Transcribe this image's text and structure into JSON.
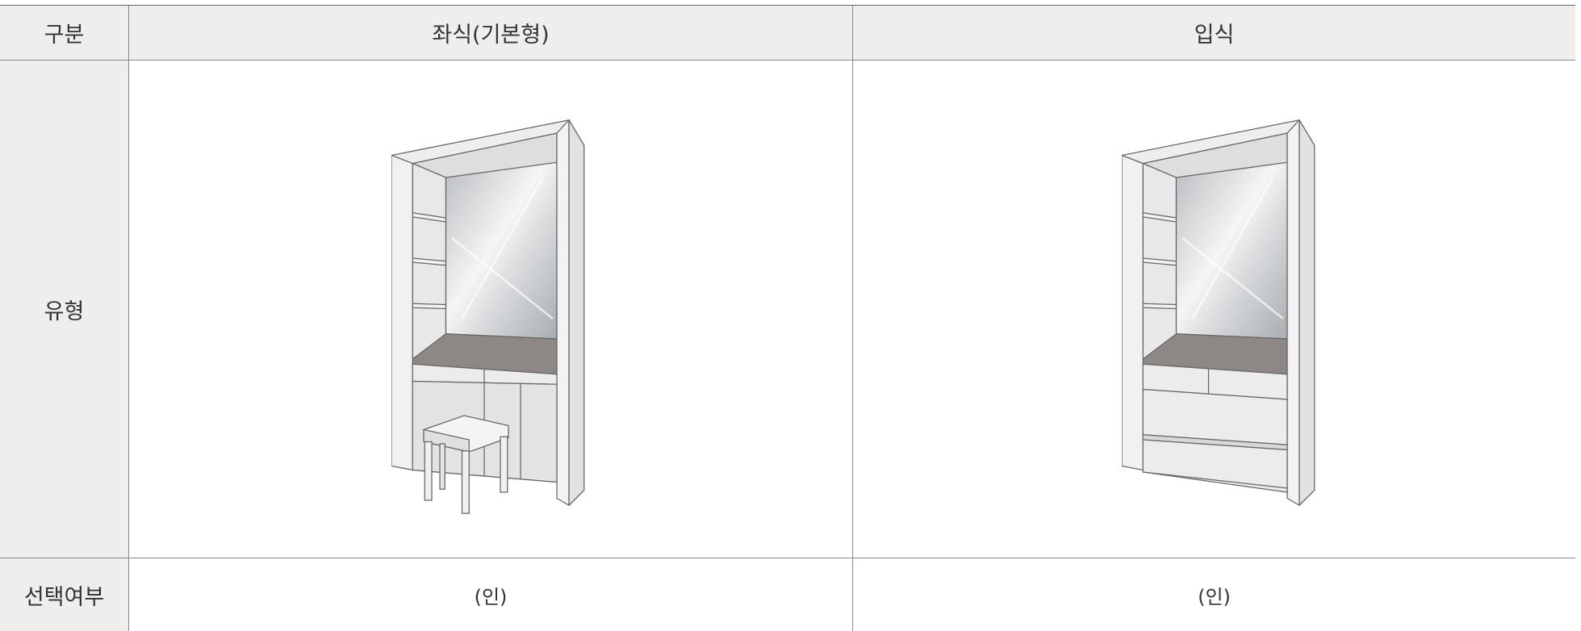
{
  "table": {
    "header": [
      "구분",
      "좌식(기본형)",
      "입식"
    ],
    "type_row": {
      "label": "유형"
    },
    "select_row": {
      "label": "선택여부",
      "cells": [
        "(인)",
        "(인)"
      ]
    }
  }
}
